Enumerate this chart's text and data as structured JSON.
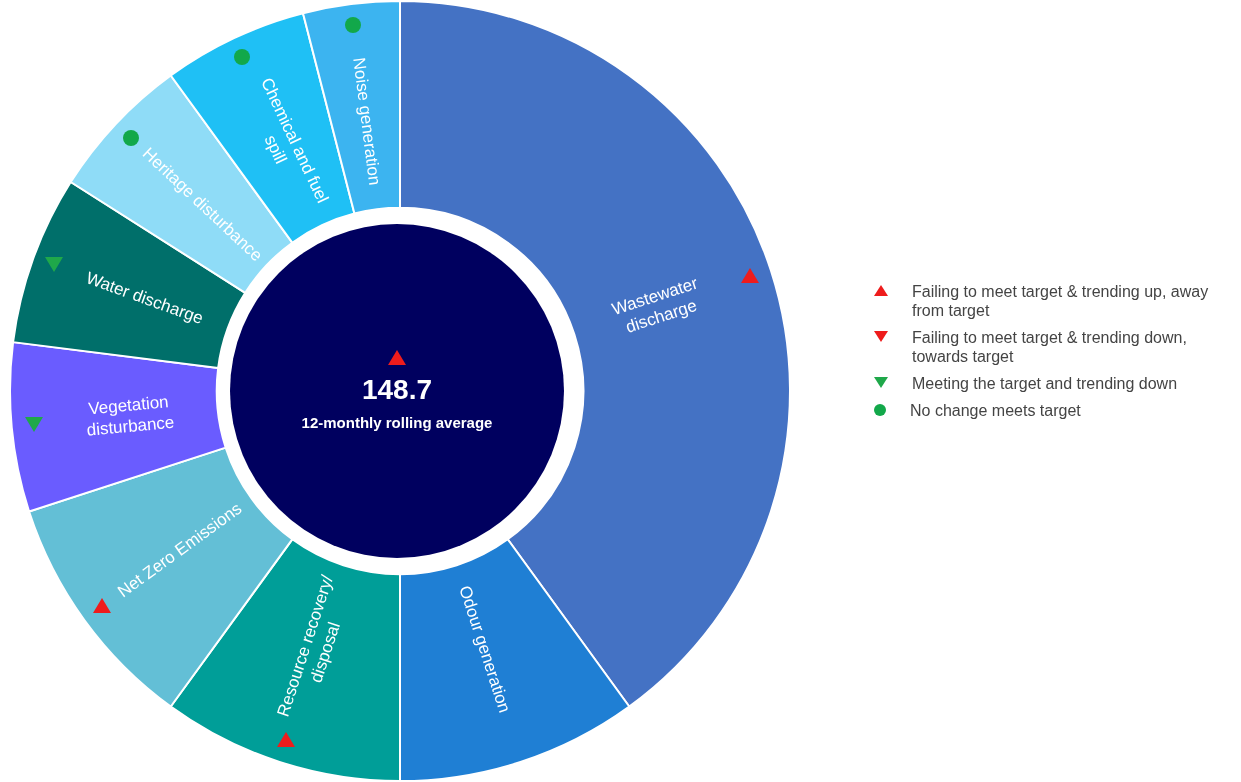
{
  "chart_data": {
    "type": "donut",
    "categories": [
      "Wastewater discharge",
      "Odour generation",
      "Resource recovery/ disposal",
      "Net Zero Emissions",
      "Vegetation disturbance",
      "Water discharge",
      "Heritage disturbance",
      "Chemical and fuel spill",
      "Noise generation"
    ],
    "values": [
      40,
      10,
      10,
      10,
      7,
      7,
      6,
      6,
      4
    ],
    "colors": [
      "#4472c4",
      "#1f7fd4",
      "#009e98",
      "#63bfd6",
      "#6a5cff",
      "#006f6a",
      "#8fdcf7",
      "#1fc0f5",
      "#3cb4f0"
    ],
    "annotations": [
      "148.7",
      "12-monthly rolling average",
      "Failing to meet target & trending up, away from target",
      "Failing to meet target & trending down, towards target",
      "Meeting the target and trending down",
      "No change meets target"
    ]
  }
}
